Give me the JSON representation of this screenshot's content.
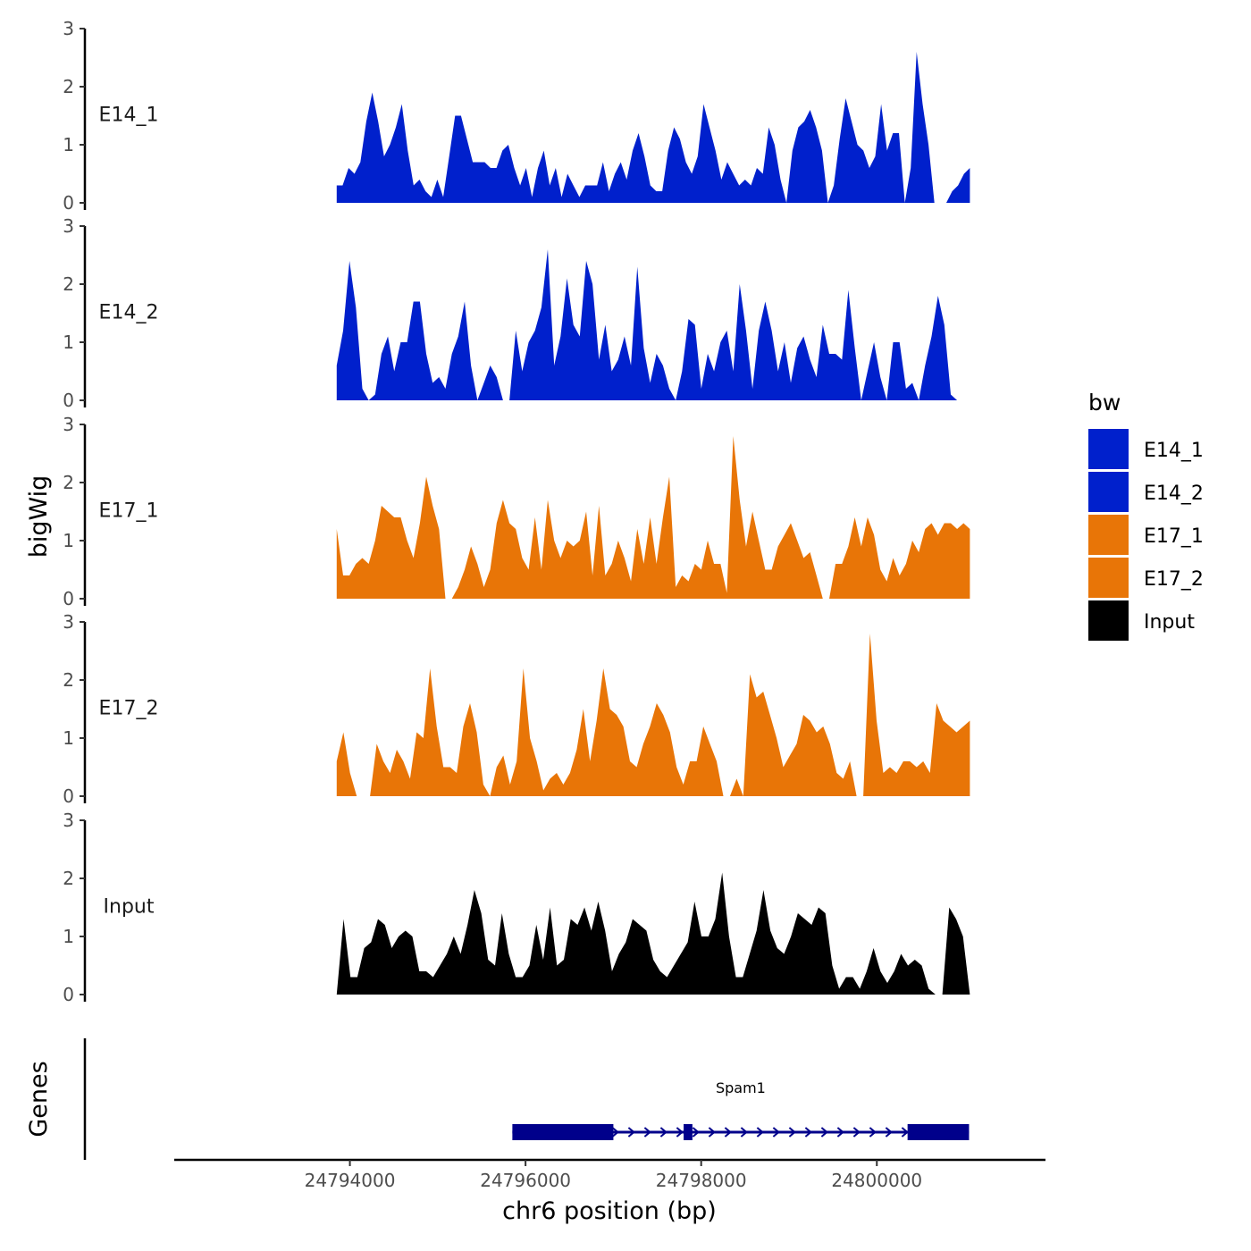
{
  "chart_data": {
    "type": "area",
    "ylabel": "bigWig",
    "xlabel": "chr6 position (bp)",
    "gene_track_label": "Genes",
    "xlim": [
      24792000,
      24801900
    ],
    "data_x_range": [
      24793850,
      24801060
    ],
    "ylim": [
      0,
      3
    ],
    "yticks": [
      0,
      1,
      2,
      3
    ],
    "ytick_labels": [
      "0",
      "1",
      "2",
      "3"
    ],
    "xticks": [
      24794000,
      24796000,
      24798000,
      24800000
    ],
    "xtick_labels": [
      "24794000",
      "24796000",
      "24798000",
      "24800000"
    ],
    "legend": {
      "title": "bw",
      "entries": [
        {
          "label": "E14_1",
          "color": "#0020CC"
        },
        {
          "label": "E14_2",
          "color": "#0020CC"
        },
        {
          "label": "E17_1",
          "color": "#E87507"
        },
        {
          "label": "E17_2",
          "color": "#E87507"
        },
        {
          "label": "Input",
          "color": "#000000"
        }
      ]
    },
    "series": [
      {
        "name": "E14_1",
        "color": "#0020CC",
        "values": [
          0.3,
          0.3,
          0.6,
          0.5,
          0.7,
          1.4,
          1.9,
          1.4,
          0.8,
          1.0,
          1.3,
          1.7,
          0.9,
          0.3,
          0.4,
          0.2,
          0.1,
          0.4,
          0.1,
          0.8,
          1.5,
          1.5,
          1.1,
          0.7,
          0.7,
          0.7,
          0.6,
          0.6,
          0.9,
          1.0,
          0.6,
          0.3,
          0.6,
          0.1,
          0.6,
          0.9,
          0.3,
          0.6,
          0.1,
          0.5,
          0.3,
          0.1,
          0.3,
          0.3,
          0.3,
          0.7,
          0.2,
          0.5,
          0.7,
          0.4,
          0.9,
          1.2,
          0.8,
          0.3,
          0.2,
          0.2,
          0.9,
          1.3,
          1.1,
          0.7,
          0.5,
          0.8,
          1.7,
          1.3,
          0.9,
          0.4,
          0.7,
          0.5,
          0.3,
          0.4,
          0.3,
          0.6,
          0.5,
          1.3,
          1.0,
          0.4,
          0.0,
          0.9,
          1.3,
          1.4,
          1.6,
          1.3,
          0.9,
          0.0,
          0.3,
          1.1,
          1.8,
          1.4,
          1.0,
          0.9,
          0.6,
          0.8,
          1.7,
          0.9,
          1.2,
          1.2,
          0.0,
          0.6,
          2.6,
          1.7,
          1.0,
          0.0,
          0.0,
          0.0,
          0.2,
          0.3,
          0.5,
          0.6
        ]
      },
      {
        "name": "E14_2",
        "color": "#0020CC",
        "values": [
          0.6,
          1.2,
          2.4,
          1.6,
          0.2,
          0.0,
          0.1,
          0.8,
          1.1,
          0.5,
          1.0,
          1.0,
          1.7,
          1.7,
          0.8,
          0.3,
          0.4,
          0.2,
          0.8,
          1.1,
          1.7,
          0.6,
          0.0,
          0.3,
          0.6,
          0.4,
          0.0,
          0.0,
          1.2,
          0.5,
          1.0,
          1.2,
          1.6,
          2.6,
          0.6,
          1.1,
          2.1,
          1.3,
          1.1,
          2.4,
          2.0,
          0.7,
          1.3,
          0.5,
          0.7,
          1.1,
          0.6,
          2.3,
          0.9,
          0.3,
          0.8,
          0.6,
          0.2,
          0.0,
          0.5,
          1.4,
          1.3,
          0.2,
          0.8,
          0.5,
          1.0,
          1.2,
          0.5,
          2.0,
          1.2,
          0.2,
          1.2,
          1.7,
          1.2,
          0.5,
          1.0,
          0.3,
          0.9,
          1.1,
          0.7,
          0.4,
          1.3,
          0.8,
          0.8,
          0.7,
          1.9,
          0.9,
          0.0,
          0.5,
          1.0,
          0.4,
          0.0,
          1.0,
          1.0,
          0.2,
          0.3,
          0.0,
          0.6,
          1.1,
          1.8,
          1.3,
          0.1,
          0.0,
          0.0,
          0.0
        ]
      },
      {
        "name": "E17_1",
        "color": "#E87507",
        "values": [
          1.2,
          0.4,
          0.4,
          0.6,
          0.7,
          0.6,
          1.0,
          1.6,
          1.5,
          1.4,
          1.4,
          1.0,
          0.7,
          1.3,
          2.1,
          1.6,
          1.2,
          0.0,
          0.0,
          0.2,
          0.5,
          0.9,
          0.6,
          0.2,
          0.5,
          1.3,
          1.7,
          1.3,
          1.2,
          0.7,
          0.5,
          1.4,
          0.5,
          1.7,
          1.0,
          0.7,
          1.0,
          0.9,
          1.0,
          1.5,
          0.4,
          1.6,
          0.4,
          0.6,
          1.0,
          0.7,
          0.3,
          1.2,
          0.6,
          1.4,
          0.6,
          1.4,
          2.1,
          0.2,
          0.4,
          0.3,
          0.6,
          0.5,
          1.0,
          0.6,
          0.6,
          0.1,
          2.8,
          1.7,
          0.9,
          1.5,
          1.0,
          0.5,
          0.5,
          0.9,
          1.1,
          1.3,
          1.0,
          0.7,
          0.8,
          0.4,
          0.0,
          0.0,
          0.6,
          0.6,
          0.9,
          1.4,
          0.9,
          1.4,
          1.1,
          0.5,
          0.3,
          0.7,
          0.4,
          0.6,
          1.0,
          0.8,
          1.2,
          1.3,
          1.1,
          1.3,
          1.3,
          1.2,
          1.3,
          1.2
        ]
      },
      {
        "name": "E17_2",
        "color": "#E87507",
        "values": [
          0.6,
          1.1,
          0.4,
          0.0,
          0.0,
          0.0,
          0.9,
          0.6,
          0.4,
          0.8,
          0.6,
          0.3,
          1.1,
          1.0,
          2.2,
          1.2,
          0.5,
          0.5,
          0.4,
          1.2,
          1.6,
          1.1,
          0.2,
          0.0,
          0.5,
          0.7,
          0.2,
          0.6,
          2.2,
          1.0,
          0.6,
          0.1,
          0.3,
          0.4,
          0.2,
          0.4,
          0.8,
          1.5,
          0.6,
          1.3,
          2.2,
          1.5,
          1.4,
          1.2,
          0.6,
          0.5,
          0.9,
          1.2,
          1.6,
          1.4,
          1.1,
          0.5,
          0.2,
          0.6,
          0.6,
          1.2,
          0.9,
          0.6,
          0.0,
          0.0,
          0.3,
          0.0,
          2.1,
          1.7,
          1.8,
          1.4,
          1.0,
          0.5,
          0.7,
          0.9,
          1.4,
          1.3,
          1.1,
          1.2,
          0.9,
          0.4,
          0.3,
          0.6,
          0.0,
          0.0,
          2.8,
          1.3,
          0.4,
          0.5,
          0.4,
          0.6,
          0.6,
          0.5,
          0.6,
          0.4,
          1.6,
          1.3,
          1.2,
          1.1,
          1.2,
          1.3
        ]
      },
      {
        "name": "Input",
        "color": "#000000",
        "values": [
          0.0,
          1.3,
          0.3,
          0.3,
          0.8,
          0.9,
          1.3,
          1.2,
          0.8,
          1.0,
          1.1,
          1.0,
          0.4,
          0.4,
          0.3,
          0.5,
          0.7,
          1.0,
          0.7,
          1.2,
          1.8,
          1.4,
          0.6,
          0.5,
          1.4,
          0.7,
          0.3,
          0.3,
          0.5,
          1.2,
          0.6,
          1.5,
          0.5,
          0.6,
          1.3,
          1.2,
          1.5,
          1.1,
          1.6,
          1.1,
          0.4,
          0.7,
          0.9,
          1.3,
          1.2,
          1.1,
          0.6,
          0.4,
          0.3,
          0.5,
          0.7,
          0.9,
          1.6,
          1.0,
          1.0,
          1.3,
          2.1,
          1.0,
          0.3,
          0.3,
          0.7,
          1.1,
          1.8,
          1.1,
          0.8,
          0.7,
          1.0,
          1.4,
          1.3,
          1.2,
          1.5,
          1.4,
          0.5,
          0.1,
          0.3,
          0.3,
          0.1,
          0.4,
          0.8,
          0.4,
          0.2,
          0.4,
          0.7,
          0.5,
          0.6,
          0.5,
          0.1,
          0.0,
          0.0,
          1.5,
          1.3,
          1.0,
          0.0
        ]
      }
    ],
    "gene": {
      "name": "Spam1",
      "start": 24795850,
      "end": 24801050,
      "exons": [
        [
          24795850,
          24797000
        ],
        [
          24797800,
          24797900
        ],
        [
          24800350,
          24801050
        ]
      ],
      "color": "#00008B"
    }
  }
}
